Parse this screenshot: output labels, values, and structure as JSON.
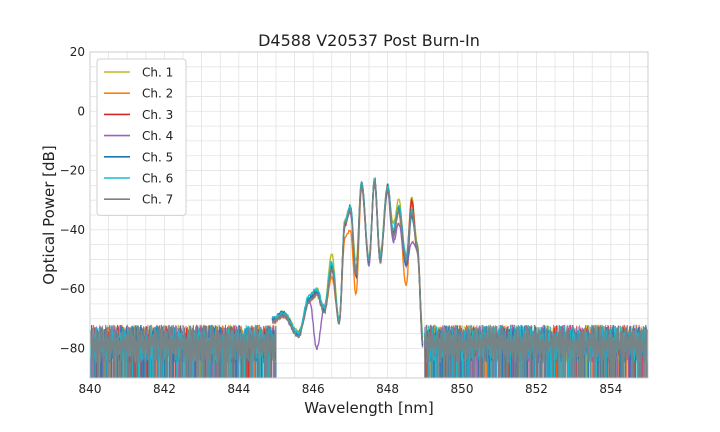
{
  "chart_data": {
    "type": "line",
    "title": "D4588 V20537 Post Burn-In",
    "xlabel": "Wavelength [nm]",
    "ylabel": "Optical Power [dB]",
    "xlim": [
      840,
      855
    ],
    "ylim": [
      -90,
      20
    ],
    "xticks": [
      840,
      842,
      844,
      846,
      848,
      850,
      852,
      854
    ],
    "yticks": [
      -80,
      -60,
      -40,
      -20,
      0,
      20
    ],
    "grid": true,
    "legend_position": "top-left",
    "noise_floor": {
      "mean": -79,
      "bottom": -90,
      "top": -72,
      "range_nm": [
        840,
        845.0
      ],
      "range2_nm": [
        849.0,
        855
      ]
    },
    "series": [
      {
        "name": "Ch. 1",
        "color": "#bcbd22",
        "x": [
          844.9,
          845.2,
          845.6,
          845.9,
          846.1,
          846.3,
          846.5,
          846.7,
          846.85,
          847.0,
          847.15,
          847.3,
          847.5,
          847.65,
          847.8,
          848.0,
          848.15,
          848.3,
          848.5,
          848.65,
          848.8,
          848.95
        ],
        "y": [
          -70,
          -68,
          -74,
          -63,
          -60,
          -66,
          -48,
          -71,
          -37,
          -32,
          -51,
          -24,
          -50,
          -23,
          -48,
          -25,
          -38,
          -30,
          -50,
          -29,
          -45,
          -76
        ]
      },
      {
        "name": "Ch. 2",
        "color": "#ff7f0e",
        "x": [
          844.9,
          845.2,
          845.6,
          845.9,
          846.1,
          846.3,
          846.5,
          846.7,
          846.85,
          847.0,
          847.15,
          847.3,
          847.5,
          847.65,
          847.8,
          848.0,
          848.15,
          848.3,
          848.5,
          848.65,
          848.8,
          848.95
        ],
        "y": [
          -71,
          -69,
          -75,
          -64,
          -62,
          -68,
          -56,
          -71,
          -43,
          -40,
          -62,
          -26,
          -51,
          -24,
          -50,
          -26,
          -43,
          -34,
          -59,
          -31,
          -48,
          -79
        ]
      },
      {
        "name": "Ch. 3",
        "color": "#d62728",
        "x": [
          844.9,
          845.2,
          845.6,
          845.9,
          846.1,
          846.3,
          846.5,
          846.7,
          846.85,
          847.0,
          847.15,
          847.3,
          847.5,
          847.65,
          847.8,
          848.0,
          848.15,
          848.3,
          848.5,
          848.65,
          848.8,
          848.95
        ],
        "y": [
          -70,
          -68,
          -75,
          -63,
          -61,
          -67,
          -52,
          -71,
          -39,
          -33,
          -56,
          -24,
          -51,
          -23,
          -50,
          -25,
          -41,
          -32,
          -51,
          -30,
          -47,
          -78
        ]
      },
      {
        "name": "Ch. 4",
        "color": "#9467bd",
        "x": [
          844.9,
          845.2,
          845.6,
          845.9,
          846.1,
          846.3,
          846.5,
          846.7,
          846.85,
          847.0,
          847.15,
          847.3,
          847.5,
          847.65,
          847.8,
          848.0,
          848.15,
          848.3,
          848.5,
          848.65,
          848.8,
          848.95
        ],
        "y": [
          -71,
          -69,
          -76,
          -64,
          -80,
          -66,
          -54,
          -71,
          -38,
          -34,
          -55,
          -25,
          -52,
          -24,
          -51,
          -27,
          -44,
          -38,
          -52,
          -44,
          -47,
          -80
        ]
      },
      {
        "name": "Ch. 5",
        "color": "#1f77b4",
        "x": [
          844.9,
          845.2,
          845.6,
          845.9,
          846.1,
          846.3,
          846.5,
          846.7,
          846.85,
          847.0,
          847.15,
          847.3,
          847.5,
          847.65,
          847.8,
          848.0,
          848.15,
          848.3,
          848.5,
          848.65,
          848.8,
          848.95
        ],
        "y": [
          -70,
          -68,
          -75,
          -63,
          -61,
          -67,
          -53,
          -71,
          -38,
          -32,
          -55,
          -24,
          -51,
          -23,
          -50,
          -26,
          -42,
          -33,
          -52,
          -35,
          -46,
          -79
        ]
      },
      {
        "name": "Ch. 6",
        "color": "#17becf",
        "x": [
          844.9,
          845.2,
          845.6,
          845.9,
          846.1,
          846.3,
          846.5,
          846.7,
          846.85,
          847.0,
          847.15,
          847.3,
          847.5,
          847.65,
          847.8,
          848.0,
          848.15,
          848.3,
          848.5,
          848.65,
          848.8,
          848.95
        ],
        "y": [
          -70,
          -68,
          -75,
          -62,
          -60,
          -66,
          -51,
          -71,
          -37,
          -32,
          -53,
          -24,
          -50,
          -23,
          -49,
          -25,
          -40,
          -32,
          -49,
          -33,
          -46,
          -77
        ]
      },
      {
        "name": "Ch. 7",
        "color": "#7f7f7f",
        "x": [
          844.9,
          845.2,
          845.6,
          845.9,
          846.1,
          846.3,
          846.5,
          846.7,
          846.85,
          847.0,
          847.15,
          847.3,
          847.5,
          847.65,
          847.8,
          848.0,
          848.15,
          848.3,
          848.5,
          848.65,
          848.8,
          848.95
        ],
        "y": [
          -71,
          -69,
          -76,
          -64,
          -62,
          -68,
          -53,
          -72,
          -38,
          -33,
          -55,
          -25,
          -51,
          -24,
          -51,
          -26,
          -42,
          -34,
          -51,
          -34,
          -46,
          -79
        ]
      }
    ]
  }
}
